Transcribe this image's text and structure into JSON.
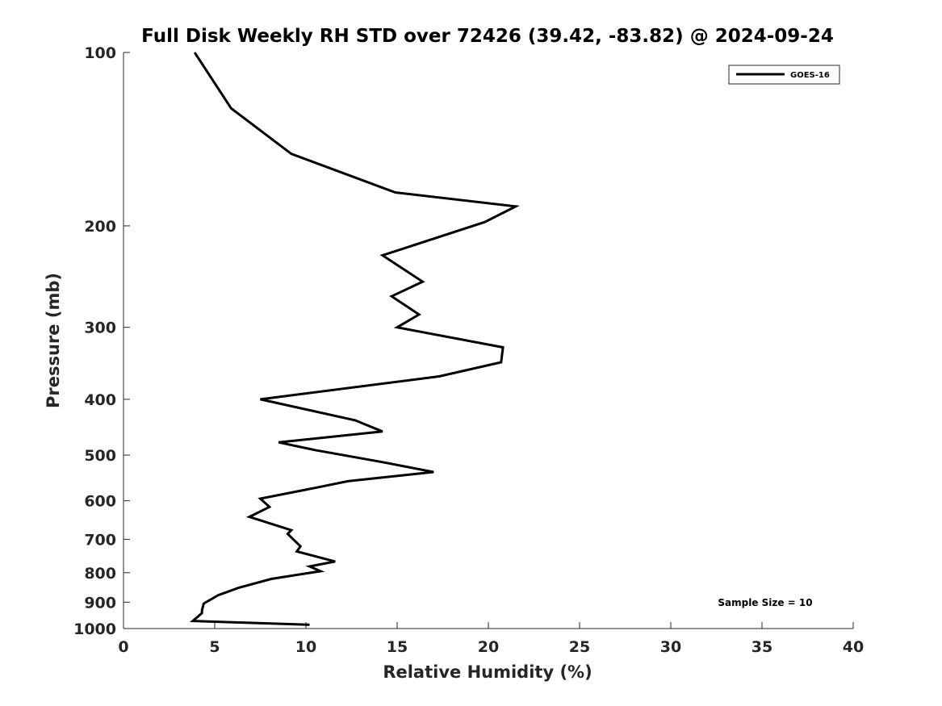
{
  "chart_data": {
    "type": "line",
    "title": "Full Disk Weekly RH STD over 72426 (39.42, -83.82) @ 2024-09-24",
    "xlabel": "Relative Humidity (%)",
    "ylabel": "Pressure (mb)",
    "xlim": [
      0,
      40
    ],
    "ylim": [
      100,
      1000
    ],
    "y_scale": "log",
    "y_reversed": true,
    "x_ticks": [
      0,
      5,
      10,
      15,
      20,
      25,
      30,
      35,
      40
    ],
    "y_ticks": [
      100,
      200,
      300,
      400,
      500,
      600,
      700,
      800,
      900,
      1000
    ],
    "grid": false,
    "legend_placement": "top-right",
    "series": [
      {
        "name": "GOES-16",
        "color": "#000000",
        "x": [
          3.9,
          5.9,
          9.2,
          14.9,
          21.5,
          19.8,
          14.2,
          16.4,
          14.7,
          16.2,
          15.0,
          20.8,
          20.7,
          17.3,
          7.5,
          12.7,
          14.2,
          8.5,
          10.5,
          14.3,
          17.0,
          12.3,
          10.5,
          7.5,
          8.0,
          6.9,
          9.2,
          9.0,
          9.7,
          9.5,
          11.6,
          10.2,
          10.8,
          8.1,
          6.3,
          5.2,
          4.4,
          4.3,
          4.3,
          3.8,
          10.2
        ],
        "y": [
          100,
          125,
          150,
          175,
          185,
          197,
          225,
          250,
          265,
          285,
          300,
          325,
          345,
          365,
          400,
          435,
          455,
          475,
          490,
          515,
          535,
          555,
          570,
          595,
          615,
          640,
          675,
          685,
          720,
          735,
          765,
          780,
          795,
          820,
          850,
          875,
          905,
          930,
          940,
          970,
          985
        ]
      }
    ],
    "annotations": [
      "Sample Size = 10"
    ]
  }
}
